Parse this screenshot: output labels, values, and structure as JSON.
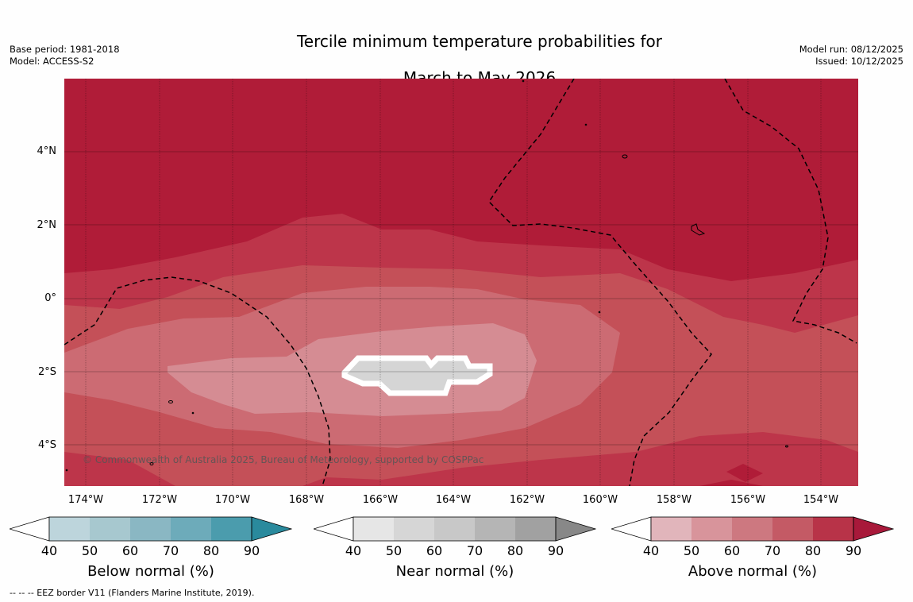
{
  "title": {
    "line1": "Tercile minimum temperature probabilities for",
    "line2": "March to May 2026"
  },
  "meta_left": {
    "base_period": "Base period: 1981-2018",
    "model": "Model: ACCESS-S2"
  },
  "meta_right": {
    "model_run": "Model run: 08/12/2025",
    "issued": "Issued: 10/12/2025"
  },
  "map": {
    "latitude_labels": [
      "4°N",
      "2°N",
      "0°",
      "2°S",
      "4°S"
    ],
    "longitude_labels": [
      "174°W",
      "172°W",
      "170°W",
      "168°W",
      "166°W",
      "164°W",
      "162°W",
      "160°W",
      "158°W",
      "156°W",
      "154°W"
    ],
    "copyright": "© Commonwealth of Australia 2025, Bureau of Meteorology, supported by COSPPac",
    "dominant_category": "Above normal",
    "colors": {
      "above_80_90": "#b01c38",
      "above_70_80": "#bd354a",
      "above_60_70": "#c45058",
      "above_50_60": "#cc6b73",
      "above_40_50": "#d58c93",
      "near_normal_masked": "#d5d5d5"
    }
  },
  "colorbars": [
    {
      "title": "Below normal (%)",
      "ticks": [
        "40",
        "50",
        "60",
        "70",
        "80",
        "90"
      ],
      "colors": [
        "#bdd5dc",
        "#a7c8cf",
        "#8ab7c3",
        "#6dabba",
        "#4b9cad",
        "#2a8a9d"
      ]
    },
    {
      "title": "Near normal (%)",
      "ticks": [
        "40",
        "50",
        "60",
        "70",
        "80",
        "90"
      ],
      "colors": [
        "#e6e6e6",
        "#d6d6d6",
        "#c8c8c8",
        "#b5b5b5",
        "#a1a1a1",
        "#888888"
      ]
    },
    {
      "title": "Above normal (%)",
      "ticks": [
        "40",
        "50",
        "60",
        "70",
        "80",
        "90"
      ],
      "colors": [
        "#e1b5bb",
        "#d8949b",
        "#cd7880",
        "#c45a65",
        "#b83348",
        "#a8193a"
      ]
    }
  ],
  "footnote": "--  --  -- EEZ border V11 (Flanders Marine Institute, 2019)."
}
